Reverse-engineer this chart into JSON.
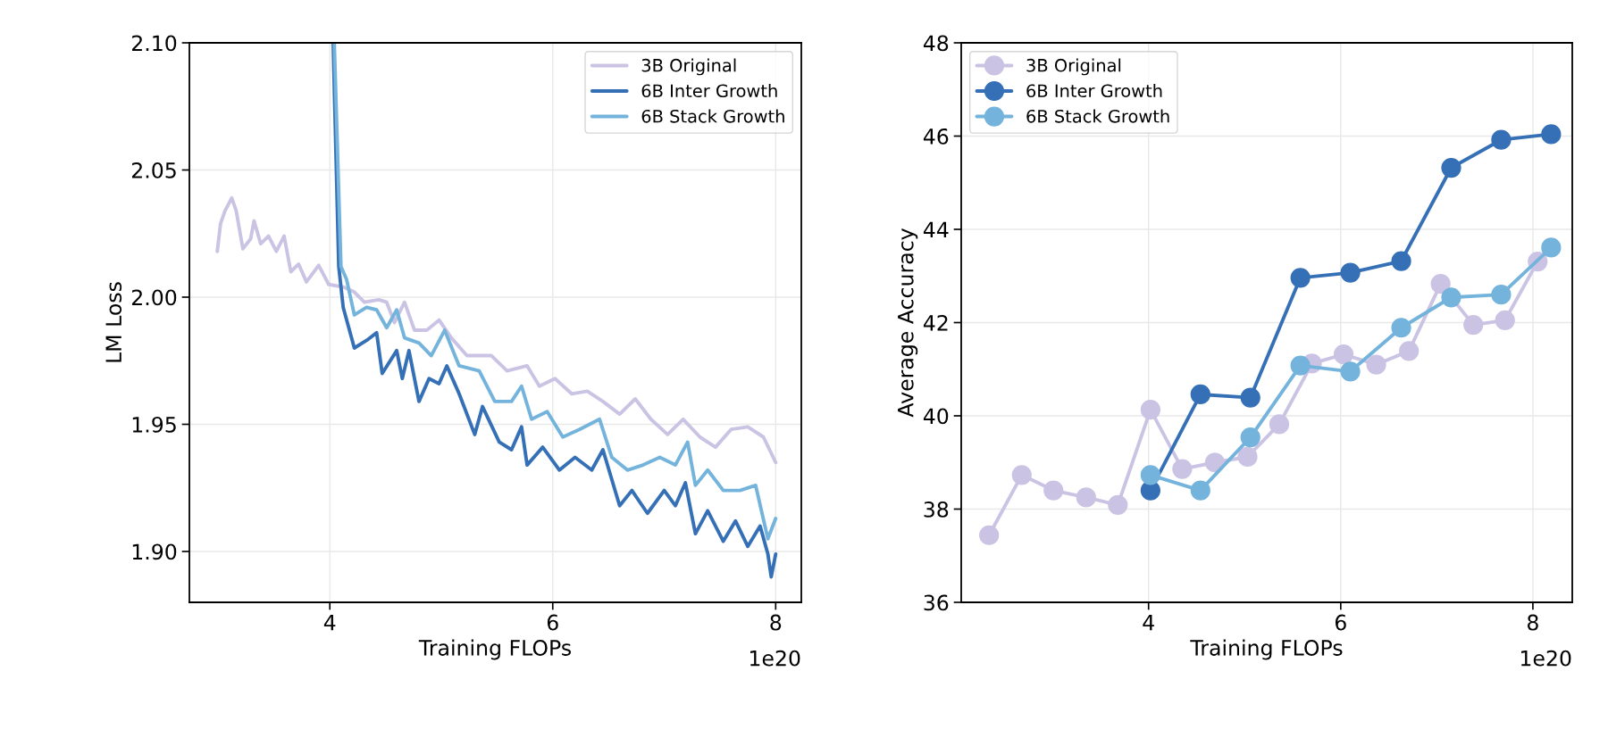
{
  "chart_data": [
    {
      "type": "line",
      "xlabel": "Training FLOPs",
      "ylabel": "LM Loss",
      "annotations": [
        "1e20"
      ],
      "xlim": [
        2.74,
        8.23
      ],
      "ylim": [
        1.88,
        2.1
      ],
      "xticks": [
        4,
        6,
        8
      ],
      "yticks": [
        {
          "value": 1.9,
          "label": "1.90"
        },
        {
          "value": 1.95,
          "label": "1.95"
        },
        {
          "value": 2.0,
          "label": "2.00"
        },
        {
          "value": 2.05,
          "label": "2.05"
        },
        {
          "value": 2.1,
          "label": "2.10"
        }
      ],
      "grid": true,
      "legend": "top right",
      "marker": "none",
      "line_style": "solid",
      "series": [
        {
          "name": "3B Original",
          "color": "#cbc3e3",
          "x": [
            2.99,
            3.02,
            3.06,
            3.12,
            3.16,
            3.22,
            3.29,
            3.32,
            3.38,
            3.45,
            3.52,
            3.59,
            3.65,
            3.72,
            3.79,
            3.9,
            3.99,
            4.12,
            4.22,
            4.31,
            4.44,
            4.51,
            4.58,
            4.67,
            4.76,
            4.87,
            4.98,
            5.09,
            5.23,
            5.45,
            5.59,
            5.77,
            5.88,
            6.02,
            6.17,
            6.31,
            6.45,
            6.6,
            6.74,
            6.88,
            7.03,
            7.17,
            7.32,
            7.46,
            7.6,
            7.75,
            7.89,
            8.0
          ],
          "values": [
            2.018,
            2.029,
            2.034,
            2.039,
            2.034,
            2.019,
            2.023,
            2.03,
            2.021,
            2.024,
            2.018,
            2.024,
            2.01,
            2.013,
            2.006,
            2.0125,
            2.005,
            2.004,
            2.002,
            1.998,
            1.999,
            1.998,
            1.99,
            1.998,
            1.987,
            1.987,
            1.991,
            1.984,
            1.977,
            1.977,
            1.971,
            1.973,
            1.965,
            1.968,
            1.962,
            1.963,
            1.959,
            1.954,
            1.96,
            1.952,
            1.946,
            1.952,
            1.945,
            1.941,
            1.948,
            1.949,
            1.945,
            1.935
          ]
        },
        {
          "name": "6B Inter Growth",
          "color": "#3570b7",
          "x": [
            4.03,
            4.08,
            4.12,
            4.22,
            4.33,
            4.42,
            4.47,
            4.6,
            4.65,
            4.71,
            4.8,
            4.89,
            4.98,
            5.05,
            5.16,
            5.3,
            5.37,
            5.52,
            5.63,
            5.72,
            5.77,
            5.91,
            6.06,
            6.2,
            6.35,
            6.45,
            6.6,
            6.71,
            6.85,
            7.0,
            7.1,
            7.19,
            7.28,
            7.39,
            7.53,
            7.64,
            7.75,
            7.86,
            7.93,
            7.96,
            8.0
          ],
          "values": [
            2.1,
            2.012,
            1.996,
            1.98,
            1.983,
            1.986,
            1.97,
            1.979,
            1.968,
            1.979,
            1.959,
            1.968,
            1.966,
            1.973,
            1.962,
            1.946,
            1.957,
            1.943,
            1.94,
            1.949,
            1.934,
            1.941,
            1.932,
            1.937,
            1.932,
            1.94,
            1.918,
            1.924,
            1.915,
            1.924,
            1.918,
            1.927,
            1.907,
            1.916,
            1.904,
            1.912,
            1.902,
            1.91,
            1.899,
            1.89,
            1.899
          ]
        },
        {
          "name": "6B Stack Growth",
          "color": "#74b3dc",
          "x": [
            4.04,
            4.1,
            4.15,
            4.22,
            4.33,
            4.42,
            4.51,
            4.6,
            4.67,
            4.8,
            4.91,
            5.03,
            5.16,
            5.34,
            5.48,
            5.63,
            5.72,
            5.81,
            5.95,
            6.09,
            6.24,
            6.42,
            6.53,
            6.67,
            6.81,
            6.96,
            7.1,
            7.21,
            7.28,
            7.39,
            7.53,
            7.68,
            7.82,
            7.93,
            8.0
          ],
          "values": [
            2.1,
            2.012,
            2.007,
            1.993,
            1.996,
            1.995,
            1.988,
            1.995,
            1.984,
            1.982,
            1.977,
            1.987,
            1.973,
            1.971,
            1.959,
            1.959,
            1.965,
            1.952,
            1.955,
            1.945,
            1.948,
            1.952,
            1.937,
            1.932,
            1.934,
            1.937,
            1.934,
            1.943,
            1.926,
            1.932,
            1.924,
            1.924,
            1.926,
            1.905,
            1.913
          ]
        }
      ]
    },
    {
      "type": "line",
      "xlabel": "Training FLOPs",
      "ylabel": "Average Accuracy",
      "annotations": [
        "1e20"
      ],
      "xlim": [
        2.05,
        8.41
      ],
      "ylim": [
        36,
        48
      ],
      "xticks": [
        4,
        6,
        8
      ],
      "yticks": [
        36,
        38,
        40,
        42,
        44,
        46,
        48
      ],
      "grid": true,
      "legend": "top left",
      "marker": "circle",
      "line_style": "solid",
      "series": [
        {
          "name": "3B Original",
          "color": "#cbc3e3",
          "x": [
            2.34,
            2.68,
            3.01,
            3.35,
            3.68,
            4.02,
            4.35,
            4.69,
            5.03,
            5.36,
            5.7,
            6.03,
            6.37,
            6.71,
            7.04,
            7.38,
            7.71,
            8.05
          ],
          "values": [
            37.44,
            38.73,
            38.4,
            38.25,
            38.09,
            40.13,
            38.86,
            39.0,
            39.12,
            39.82,
            41.12,
            41.32,
            41.1,
            41.39,
            42.83,
            41.95,
            42.05,
            43.31
          ]
        },
        {
          "name": "6B Inter Growth",
          "color": "#3570b7",
          "x": [
            4.02,
            4.54,
            5.06,
            5.58,
            6.1,
            6.63,
            7.15,
            7.67,
            8.19
          ],
          "values": [
            38.4,
            40.46,
            40.39,
            42.96,
            43.07,
            43.32,
            45.32,
            45.92,
            46.04
          ]
        },
        {
          "name": "6B Stack Growth",
          "color": "#74b3dc",
          "x": [
            4.02,
            4.54,
            5.06,
            5.58,
            6.1,
            6.63,
            7.15,
            7.67,
            8.19
          ],
          "values": [
            38.73,
            38.4,
            39.54,
            41.08,
            40.95,
            41.89,
            42.54,
            42.6,
            43.61
          ]
        }
      ]
    }
  ]
}
